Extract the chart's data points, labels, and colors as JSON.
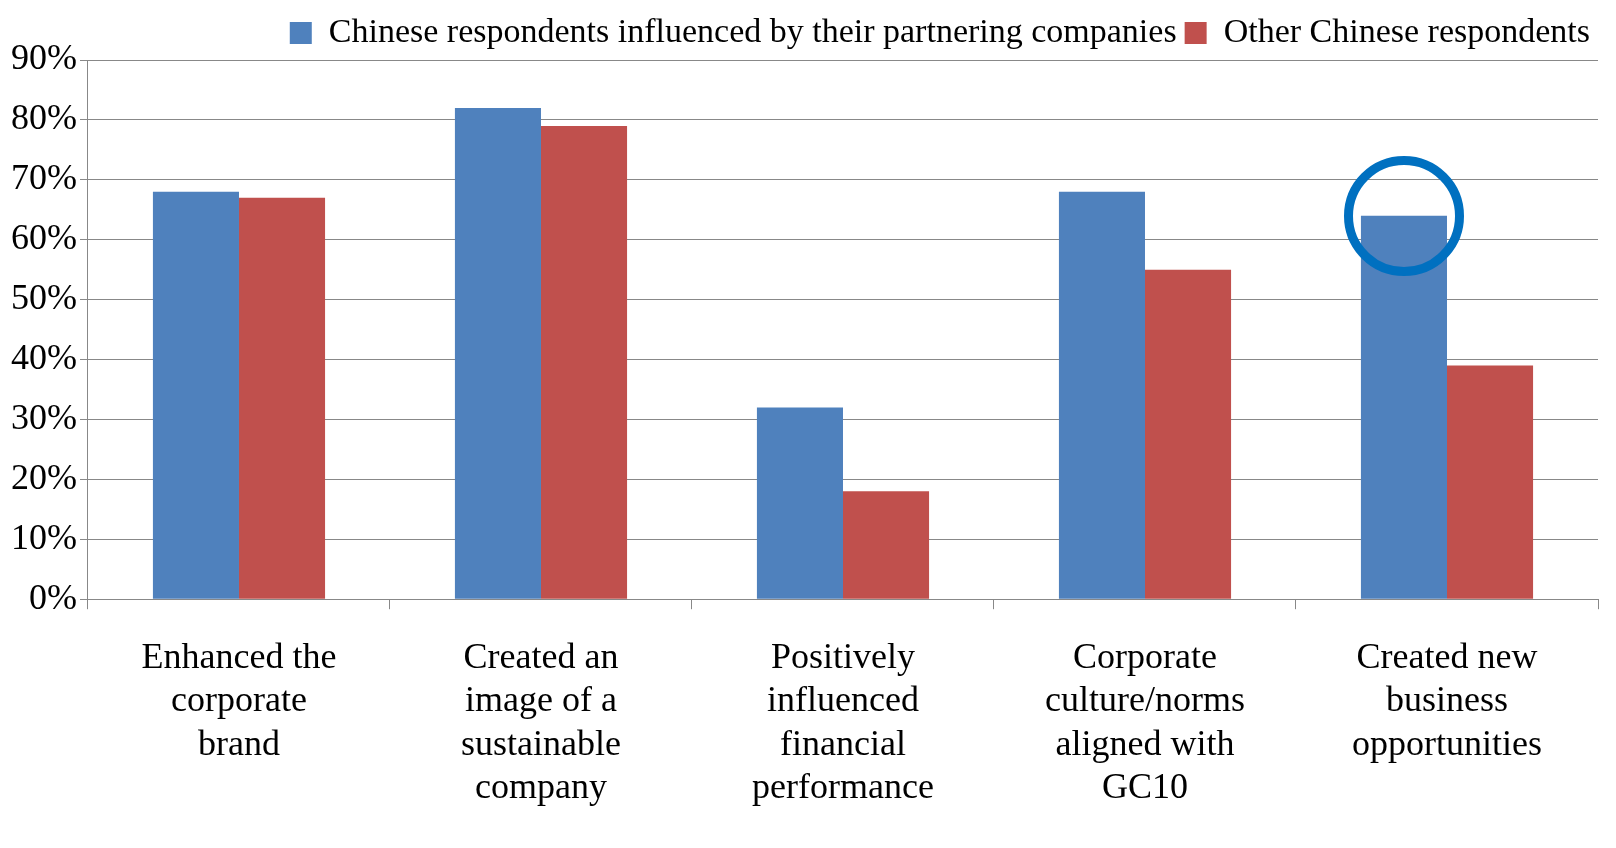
{
  "chart_data": {
    "type": "bar",
    "categories": [
      "Enhanced the corporate brand",
      "Created an image of a sustainable company",
      "Positively influenced financial performance",
      "Corporate culture/norms aligned with GC10",
      "Created new business opportunities"
    ],
    "series": [
      {
        "name": "Chinese respondents influenced by their partnering companies",
        "color": "#4f81bd",
        "values": [
          68,
          82,
          32,
          68,
          64
        ]
      },
      {
        "name": "Other Chinese respondents",
        "color": "#c0504d",
        "values": [
          67,
          79,
          18,
          55,
          39
        ]
      }
    ],
    "ylim": [
      0,
      90
    ],
    "yticks": [
      {
        "value": 0,
        "label": "0%"
      },
      {
        "value": 10,
        "label": "10%"
      },
      {
        "value": 20,
        "label": "20%"
      },
      {
        "value": 30,
        "label": "30%"
      },
      {
        "value": 40,
        "label": "40%"
      },
      {
        "value": 50,
        "label": "50%"
      },
      {
        "value": 60,
        "label": "60%"
      },
      {
        "value": 70,
        "label": "70%"
      },
      {
        "value": 80,
        "label": "80%"
      },
      {
        "value": 90,
        "label": "90%"
      }
    ],
    "grid": "y",
    "legend": "top right"
  }
}
